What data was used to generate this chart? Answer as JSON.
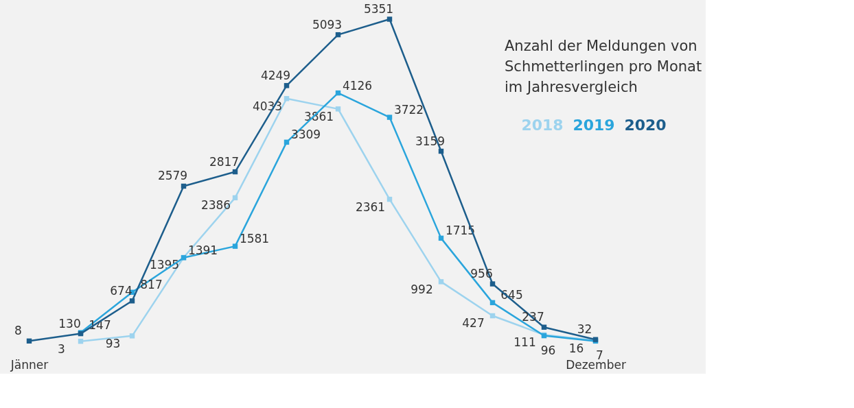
{
  "chart_data": {
    "type": "line",
    "title": "Anzahl der Meldungen von Schmetterlingen pro Monat im Jahresvergleich",
    "categories": [
      "Jänner",
      null,
      null,
      null,
      null,
      null,
      null,
      null,
      null,
      null,
      null,
      "Dezember"
    ],
    "series": [
      {
        "name": "2018",
        "color": "#9dd3ee",
        "values": [
          null,
          3,
          93,
          1395,
          2386,
          4033,
          3861,
          2361,
          992,
          427,
          111,
          16
        ],
        "value_labels": [
          null,
          "3",
          "93",
          "1395",
          "2386",
          "4033",
          "3861",
          "2361",
          "992",
          "427",
          "111",
          "16"
        ]
      },
      {
        "name": "2019",
        "color": "#2aa5dc",
        "values": [
          null,
          147,
          817,
          1391,
          1581,
          3309,
          4126,
          3722,
          1715,
          645,
          96,
          7
        ],
        "value_labels": [
          null,
          "147",
          "817",
          "1391",
          "1581",
          "3309",
          "4126",
          "3722",
          "1715",
          "645",
          "96",
          "7"
        ]
      },
      {
        "name": "2020",
        "color": "#1d5e8c",
        "values": [
          8,
          130,
          674,
          2579,
          2817,
          4249,
          5093,
          5351,
          3159,
          956,
          237,
          32
        ],
        "value_labels": [
          "8",
          "130",
          "674",
          "2579",
          "2817",
          "4249",
          "5093",
          "5351",
          "3159",
          "956",
          "237",
          "32"
        ]
      }
    ],
    "legend": "top right",
    "marker": "square",
    "line_style": "solid",
    "grid": false
  }
}
